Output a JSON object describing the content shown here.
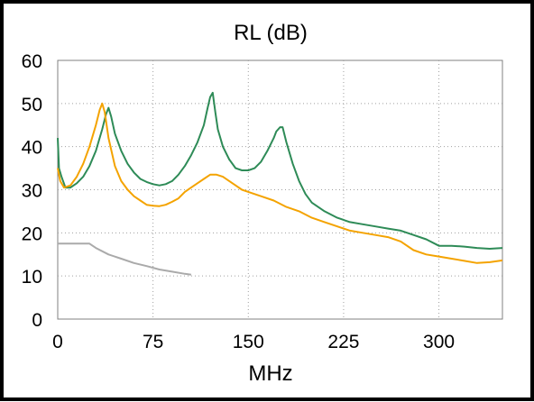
{
  "chart_data": {
    "type": "line",
    "title": "RL (dB)",
    "xlabel": "MHz",
    "ylabel": "",
    "xlim": [
      0,
      350
    ],
    "ylim": [
      0,
      60
    ],
    "xticks": [
      0,
      75,
      150,
      225,
      300
    ],
    "yticks": [
      0,
      10,
      20,
      30,
      40,
      50,
      60
    ],
    "grid": true,
    "legend": "none",
    "series": [
      {
        "color": "#2e8b57",
        "x": [
          0,
          1,
          3,
          6,
          10,
          15,
          20,
          25,
          30,
          35,
          38,
          40,
          42,
          45,
          50,
          55,
          60,
          65,
          70,
          75,
          80,
          85,
          90,
          95,
          100,
          105,
          110,
          115,
          118,
          120,
          122,
          124,
          126,
          130,
          135,
          140,
          145,
          150,
          155,
          160,
          165,
          170,
          172,
          175,
          177,
          180,
          185,
          190,
          195,
          200,
          210,
          220,
          230,
          240,
          250,
          260,
          270,
          280,
          290,
          300,
          310,
          320,
          330,
          340,
          350
        ],
        "values": [
          42,
          35,
          33,
          30.5,
          30.5,
          31.5,
          33,
          35.5,
          39,
          44,
          47.5,
          49,
          47,
          43,
          39,
          36,
          34,
          32.5,
          31.8,
          31.3,
          31,
          31.3,
          32,
          33.5,
          35.5,
          38,
          41,
          45,
          49,
          51.5,
          52.5,
          48,
          44,
          40,
          37,
          35,
          34.5,
          34.5,
          35,
          36.5,
          39,
          42,
          43.5,
          44.5,
          44.5,
          41,
          36,
          32,
          29,
          27,
          25,
          23.5,
          22.5,
          22,
          21.5,
          21,
          20.5,
          19.5,
          18.5,
          17,
          17,
          16.8,
          16.5,
          16.3,
          16.5
        ]
      },
      {
        "color": "#f4a300",
        "x": [
          0,
          2,
          5,
          10,
          15,
          20,
          25,
          30,
          33,
          35,
          37,
          40,
          45,
          50,
          55,
          60,
          65,
          70,
          75,
          80,
          85,
          90,
          95,
          100,
          105,
          110,
          115,
          120,
          125,
          130,
          135,
          140,
          145,
          150,
          160,
          170,
          180,
          190,
          200,
          210,
          220,
          230,
          240,
          250,
          260,
          270,
          280,
          290,
          300,
          310,
          320,
          330,
          340,
          350
        ],
        "values": [
          35,
          32,
          30.5,
          31,
          33,
          36,
          40,
          45,
          48.5,
          50,
          48,
          42,
          35.5,
          32,
          30,
          28.5,
          27.5,
          26.5,
          26.3,
          26.2,
          26.5,
          27.2,
          28,
          29.5,
          30.5,
          31.5,
          32.5,
          33.5,
          33.5,
          33,
          32,
          31,
          30,
          29.5,
          28.5,
          27.5,
          26,
          25,
          23.5,
          22.5,
          21.5,
          20.5,
          20,
          19.5,
          19,
          18,
          16,
          15,
          14.5,
          14,
          13.5,
          13,
          13.2,
          13.6
        ]
      },
      {
        "color": "#aaaaaa",
        "x": [
          0,
          10,
          20,
          25,
          30,
          40,
          50,
          60,
          70,
          80,
          90,
          100,
          105
        ],
        "values": [
          17.5,
          17.5,
          17.5,
          17.5,
          16.5,
          15,
          14,
          13,
          12.3,
          11.5,
          11,
          10.5,
          10.3
        ]
      }
    ]
  }
}
